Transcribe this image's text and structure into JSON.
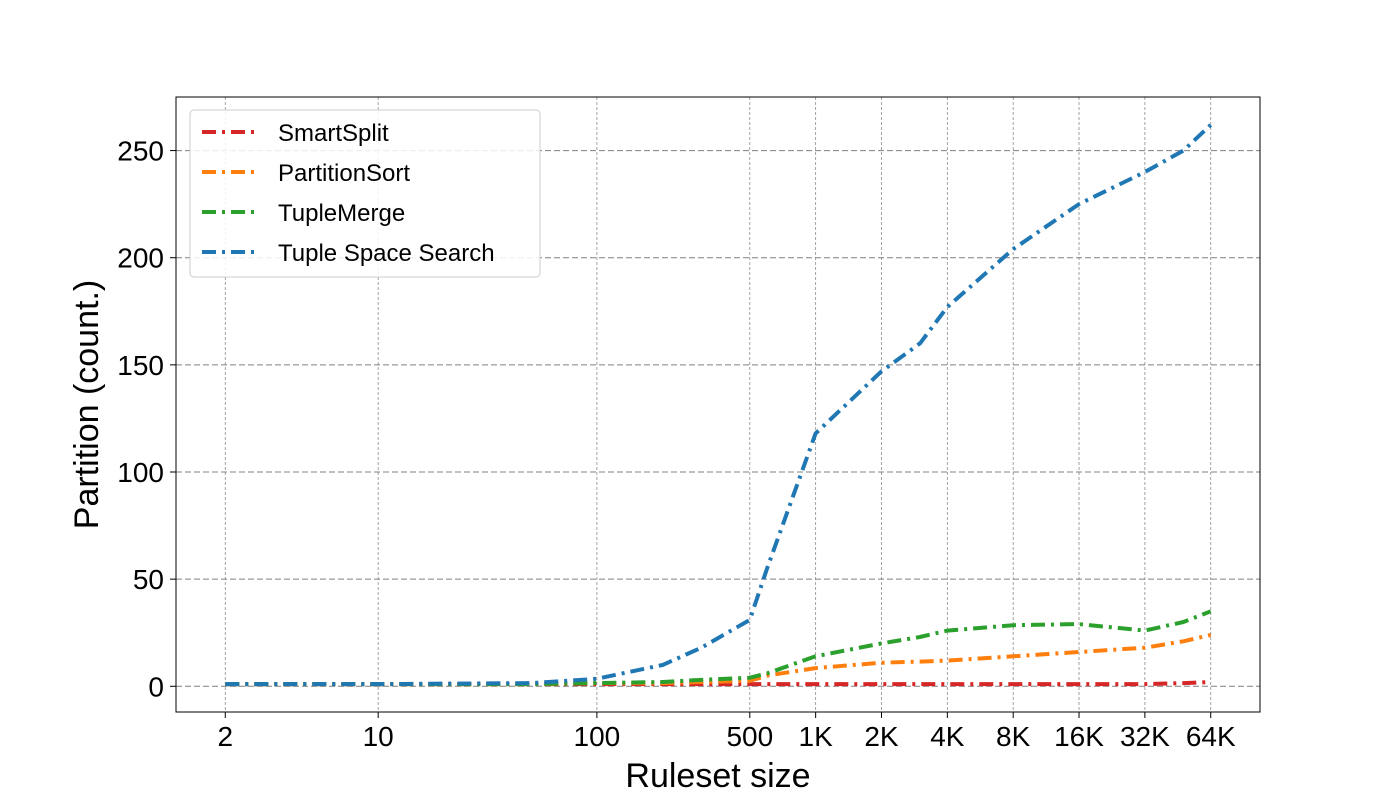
{
  "chart_data": {
    "type": "line",
    "title": "",
    "xlabel": "Ruleset size",
    "ylabel": "Partition (count.)",
    "x_scale": "log2",
    "x": [
      2,
      10,
      50,
      100,
      200,
      300,
      500,
      600,
      1000,
      2000,
      3000,
      4000,
      8000,
      16000,
      32000,
      48000,
      64000
    ],
    "xticks": [
      {
        "value": 2,
        "label": "2"
      },
      {
        "value": 10,
        "label": "10"
      },
      {
        "value": 100,
        "label": "100"
      },
      {
        "value": 500,
        "label": "500"
      },
      {
        "value": 1000,
        "label": "1K"
      },
      {
        "value": 2000,
        "label": "2K"
      },
      {
        "value": 4000,
        "label": "4K"
      },
      {
        "value": 8000,
        "label": "8K"
      },
      {
        "value": 16000,
        "label": "16K"
      },
      {
        "value": 32000,
        "label": "32K"
      },
      {
        "value": 64000,
        "label": "64K"
      }
    ],
    "ylim": [
      -12,
      275
    ],
    "yticks": [
      0,
      50,
      100,
      150,
      200,
      250
    ],
    "grid": true,
    "legend_position": "top-left",
    "series": [
      {
        "name": "SmartSplit",
        "color": "#d62728",
        "values": [
          1,
          1,
          1,
          1,
          1,
          1,
          1,
          1,
          1,
          1,
          1,
          1,
          1,
          1,
          1,
          1.5,
          2
        ]
      },
      {
        "name": "PartitionSort",
        "color": "#ff7f0e",
        "values": [
          1,
          1,
          1,
          1.5,
          1.5,
          2,
          2.5,
          5,
          8.5,
          11,
          11.5,
          12,
          14,
          16,
          18,
          21,
          24
        ]
      },
      {
        "name": "TupleMerge",
        "color": "#2ca02c",
        "values": [
          1,
          1,
          1,
          1.5,
          2,
          3,
          4,
          6,
          14,
          20,
          23,
          26,
          28.5,
          29,
          26,
          30,
          35
        ]
      },
      {
        "name": "Tuple Space Search",
        "color": "#1f77b4",
        "values": [
          1,
          1,
          1.5,
          3.5,
          10,
          18,
          31,
          55,
          118,
          147,
          160,
          177,
          204,
          225,
          240,
          250,
          262
        ]
      }
    ]
  }
}
